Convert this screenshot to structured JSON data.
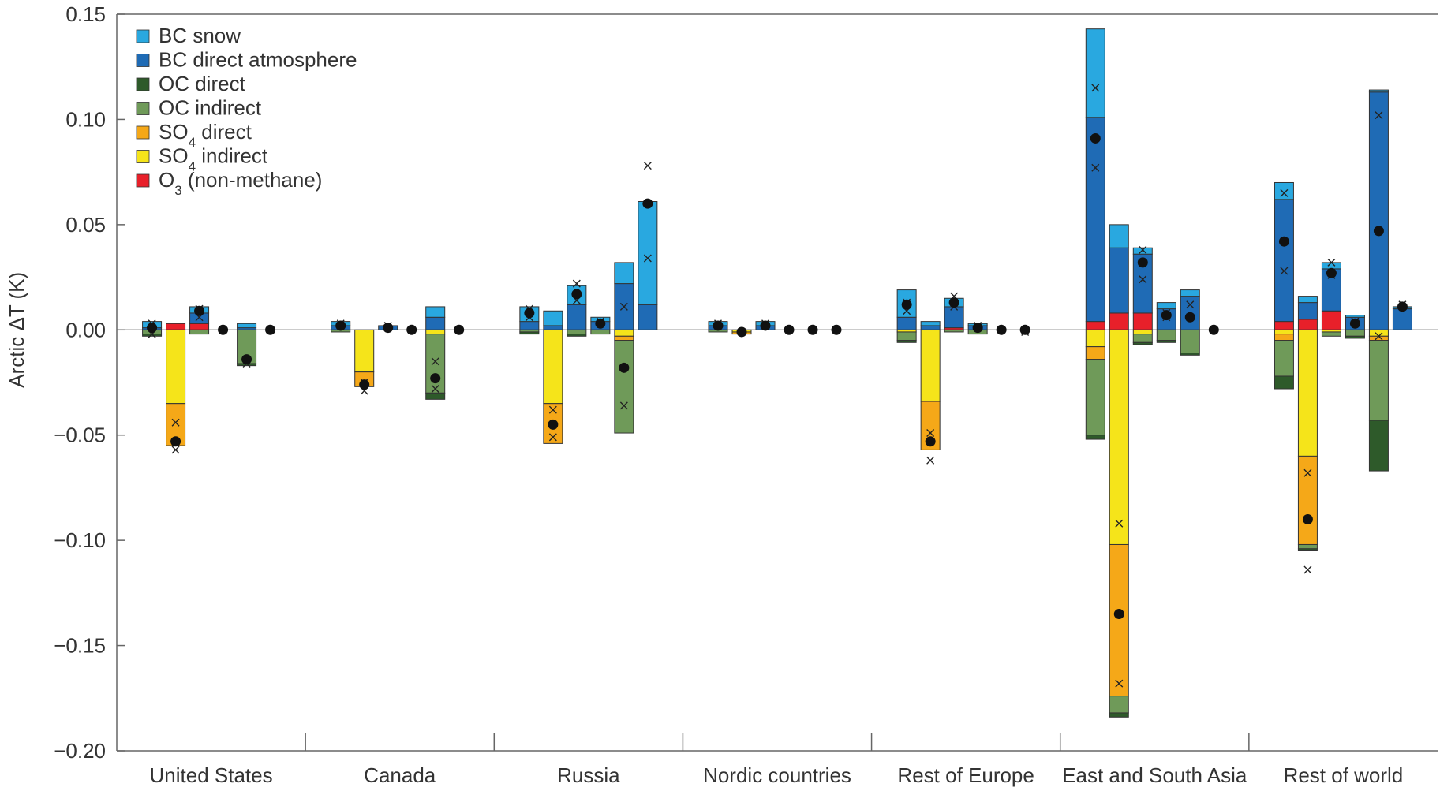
{
  "chart_data": {
    "type": "bar",
    "stacked": true,
    "ylabel": "Arctic ΔT (K)",
    "ylim": [
      -0.2,
      0.15
    ],
    "yticks": [
      0.15,
      0.1,
      0.05,
      0.0,
      -0.05,
      -0.1,
      -0.15,
      -0.2
    ],
    "ytick_labels": [
      "0.15",
      "0.10",
      "0.05",
      "0.00",
      "−0.05",
      "−0.10",
      "−0.15",
      "−0.20"
    ],
    "grid": false,
    "legend_position": "top-left",
    "categories": [
      "United States",
      "Canada",
      "Russia",
      "Nordic countries",
      "Rest of Europe",
      "East and South Asia",
      "Rest of world"
    ],
    "components": [
      {
        "key": "bc_snow",
        "label": "BC snow",
        "sub": "",
        "after": "",
        "color": "#29a8e0"
      },
      {
        "key": "bc_atm",
        "label": "BC direct atmosphere",
        "sub": "",
        "after": "",
        "color": "#1f6bb5"
      },
      {
        "key": "oc_dir",
        "label": "OC direct",
        "sub": "",
        "after": "",
        "color": "#2e5a2a"
      },
      {
        "key": "oc_ind",
        "label": "OC indirect",
        "sub": "",
        "after": "",
        "color": "#6f9a59"
      },
      {
        "key": "so4_dir",
        "label": "SO",
        "sub": "4",
        "after": " direct",
        "color": "#f5a818"
      },
      {
        "key": "so4_ind",
        "label": "SO",
        "sub": "4",
        "after": " indirect",
        "color": "#f5e41a"
      },
      {
        "key": "o3",
        "label": "O",
        "sub": "3",
        "after": " (non-methane)",
        "color": "#e8202a"
      }
    ],
    "bars": [
      {
        "group": 0,
        "pos": [
          {
            "c": "bc_atm",
            "v": 0.001
          },
          {
            "c": "bc_snow",
            "v": 0.003
          }
        ],
        "neg": [
          {
            "c": "oc_ind",
            "v": -0.002
          },
          {
            "c": "oc_dir",
            "v": -0.001
          }
        ],
        "dot": 0.001,
        "crosses": [
          0.003,
          -0.002
        ]
      },
      {
        "group": 0,
        "pos": [
          {
            "c": "o3",
            "v": 0.003
          }
        ],
        "neg": [
          {
            "c": "so4_ind",
            "v": -0.035
          },
          {
            "c": "so4_dir",
            "v": -0.02
          }
        ],
        "dot": -0.053,
        "crosses": [
          -0.044,
          -0.057
        ]
      },
      {
        "group": 0,
        "pos": [
          {
            "c": "o3",
            "v": 0.003
          },
          {
            "c": "bc_atm",
            "v": 0.005
          },
          {
            "c": "bc_snow",
            "v": 0.003
          }
        ],
        "neg": [
          {
            "c": "oc_ind",
            "v": -0.002
          }
        ],
        "dot": 0.009,
        "crosses": [
          0.01,
          0.006
        ]
      },
      {
        "group": 0,
        "pos": [],
        "neg": [],
        "dot": 0.0,
        "crosses": []
      },
      {
        "group": 0,
        "pos": [
          {
            "c": "bc_atm",
            "v": 0.001
          },
          {
            "c": "bc_snow",
            "v": 0.002
          }
        ],
        "neg": [
          {
            "c": "oc_ind",
            "v": -0.016
          },
          {
            "c": "oc_dir",
            "v": -0.001
          }
        ],
        "dot": -0.014,
        "crosses": [
          -0.016
        ]
      },
      {
        "group": 0,
        "pos": [],
        "neg": [],
        "dot": 0.0,
        "crosses": []
      },
      {
        "group": 1,
        "pos": [
          {
            "c": "bc_atm",
            "v": 0.002
          },
          {
            "c": "bc_snow",
            "v": 0.002
          }
        ],
        "neg": [
          {
            "c": "oc_ind",
            "v": -0.001
          }
        ],
        "dot": 0.002,
        "crosses": [
          0.003
        ]
      },
      {
        "group": 1,
        "pos": [],
        "neg": [
          {
            "c": "so4_ind",
            "v": -0.02
          },
          {
            "c": "so4_dir",
            "v": -0.007
          }
        ],
        "dot": -0.026,
        "crosses": [
          -0.025,
          -0.029
        ]
      },
      {
        "group": 1,
        "pos": [
          {
            "c": "bc_atm",
            "v": 0.002
          }
        ],
        "neg": [],
        "dot": 0.001,
        "crosses": [
          0.002
        ]
      },
      {
        "group": 1,
        "pos": [],
        "neg": [],
        "dot": 0.0,
        "crosses": []
      },
      {
        "group": 1,
        "pos": [
          {
            "c": "bc_atm",
            "v": 0.006
          },
          {
            "c": "bc_snow",
            "v": 0.005
          }
        ],
        "neg": [
          {
            "c": "so4_ind",
            "v": -0.002
          },
          {
            "c": "oc_ind",
            "v": -0.028
          },
          {
            "c": "oc_dir",
            "v": -0.003
          }
        ],
        "dot": -0.023,
        "crosses": [
          -0.015,
          -0.028
        ]
      },
      {
        "group": 1,
        "pos": [],
        "neg": [],
        "dot": 0.0,
        "crosses": []
      },
      {
        "group": 2,
        "pos": [
          {
            "c": "bc_atm",
            "v": 0.004
          },
          {
            "c": "bc_snow",
            "v": 0.007
          }
        ],
        "neg": [
          {
            "c": "oc_ind",
            "v": -0.001
          },
          {
            "c": "oc_dir",
            "v": -0.001
          }
        ],
        "dot": 0.008,
        "crosses": [
          0.01,
          0.006
        ]
      },
      {
        "group": 2,
        "pos": [
          {
            "c": "bc_atm",
            "v": 0.002
          },
          {
            "c": "bc_snow",
            "v": 0.007
          }
        ],
        "neg": [
          {
            "c": "so4_ind",
            "v": -0.035
          },
          {
            "c": "so4_dir",
            "v": -0.019
          }
        ],
        "dot": -0.045,
        "crosses": [
          -0.038,
          -0.051
        ]
      },
      {
        "group": 2,
        "pos": [
          {
            "c": "bc_atm",
            "v": 0.012
          },
          {
            "c": "bc_snow",
            "v": 0.009
          }
        ],
        "neg": [
          {
            "c": "oc_ind",
            "v": -0.002
          },
          {
            "c": "oc_dir",
            "v": -0.001
          }
        ],
        "dot": 0.017,
        "crosses": [
          0.022,
          0.014
        ]
      },
      {
        "group": 2,
        "pos": [
          {
            "c": "bc_atm",
            "v": 0.004
          },
          {
            "c": "bc_snow",
            "v": 0.002
          }
        ],
        "neg": [
          {
            "c": "oc_ind",
            "v": -0.002
          }
        ],
        "dot": 0.003,
        "crosses": [
          0.004
        ]
      },
      {
        "group": 2,
        "pos": [
          {
            "c": "bc_atm",
            "v": 0.022
          },
          {
            "c": "bc_snow",
            "v": 0.01
          }
        ],
        "neg": [
          {
            "c": "so4_ind",
            "v": -0.003
          },
          {
            "c": "so4_dir",
            "v": -0.002
          },
          {
            "c": "oc_ind",
            "v": -0.044
          }
        ],
        "dot": -0.018,
        "crosses": [
          0.011,
          -0.036
        ]
      },
      {
        "group": 2,
        "pos": [
          {
            "c": "bc_atm",
            "v": 0.012
          },
          {
            "c": "bc_snow",
            "v": 0.049
          }
        ],
        "neg": [],
        "dot": 0.06,
        "crosses": [
          0.078,
          0.034
        ]
      },
      {
        "group": 3,
        "pos": [
          {
            "c": "bc_atm",
            "v": 0.002
          },
          {
            "c": "bc_snow",
            "v": 0.002
          }
        ],
        "neg": [
          {
            "c": "oc_ind",
            "v": -0.001
          }
        ],
        "dot": 0.002,
        "crosses": [
          0.003
        ]
      },
      {
        "group": 3,
        "pos": [],
        "neg": [
          {
            "c": "so4_ind",
            "v": -0.001
          },
          {
            "c": "so4_dir",
            "v": -0.001
          }
        ],
        "dot": -0.001,
        "crosses": [
          -0.001
        ]
      },
      {
        "group": 3,
        "pos": [
          {
            "c": "bc_atm",
            "v": 0.002
          },
          {
            "c": "bc_snow",
            "v": 0.002
          }
        ],
        "neg": [],
        "dot": 0.002,
        "crosses": [
          0.003
        ]
      },
      {
        "group": 3,
        "pos": [],
        "neg": [],
        "dot": 0.0,
        "crosses": []
      },
      {
        "group": 3,
        "pos": [],
        "neg": [],
        "dot": 0.0,
        "crosses": []
      },
      {
        "group": 3,
        "pos": [],
        "neg": [],
        "dot": 0.0,
        "crosses": []
      },
      {
        "group": 4,
        "pos": [
          {
            "c": "bc_atm",
            "v": 0.006
          },
          {
            "c": "bc_snow",
            "v": 0.013
          }
        ],
        "neg": [
          {
            "c": "so4_ind",
            "v": -0.001
          },
          {
            "c": "oc_ind",
            "v": -0.004
          },
          {
            "c": "oc_dir",
            "v": -0.001
          }
        ],
        "dot": 0.012,
        "crosses": [
          0.013,
          0.009
        ]
      },
      {
        "group": 4,
        "pos": [
          {
            "c": "bc_atm",
            "v": 0.002
          },
          {
            "c": "bc_snow",
            "v": 0.002
          }
        ],
        "neg": [
          {
            "c": "so4_ind",
            "v": -0.034
          },
          {
            "c": "so4_dir",
            "v": -0.023
          }
        ],
        "dot": -0.053,
        "crosses": [
          -0.049,
          -0.062
        ]
      },
      {
        "group": 4,
        "pos": [
          {
            "c": "o3",
            "v": 0.001
          },
          {
            "c": "bc_atm",
            "v": 0.01
          },
          {
            "c": "bc_snow",
            "v": 0.004
          }
        ],
        "neg": [
          {
            "c": "oc_ind",
            "v": -0.001
          }
        ],
        "dot": 0.013,
        "crosses": [
          0.016,
          0.011
        ]
      },
      {
        "group": 4,
        "pos": [
          {
            "c": "bc_atm",
            "v": 0.002
          },
          {
            "c": "bc_snow",
            "v": 0.001
          }
        ],
        "neg": [
          {
            "c": "oc_ind",
            "v": -0.002
          }
        ],
        "dot": 0.001,
        "crosses": [
          0.002
        ]
      },
      {
        "group": 4,
        "pos": [],
        "neg": [],
        "dot": 0.0,
        "crosses": []
      },
      {
        "group": 4,
        "pos": [],
        "neg": [],
        "dot": 0.0,
        "crosses": [
          -0.001
        ]
      },
      {
        "group": 5,
        "pos": [
          {
            "c": "o3",
            "v": 0.004
          },
          {
            "c": "bc_atm",
            "v": 0.097
          },
          {
            "c": "bc_snow",
            "v": 0.042
          }
        ],
        "neg": [
          {
            "c": "so4_ind",
            "v": -0.008
          },
          {
            "c": "so4_dir",
            "v": -0.006
          },
          {
            "c": "oc_ind",
            "v": -0.036
          },
          {
            "c": "oc_dir",
            "v": -0.002
          }
        ],
        "dot": 0.091,
        "crosses": [
          0.115,
          0.077
        ]
      },
      {
        "group": 5,
        "pos": [
          {
            "c": "o3",
            "v": 0.008
          },
          {
            "c": "bc_atm",
            "v": 0.031
          },
          {
            "c": "bc_snow",
            "v": 0.011
          }
        ],
        "neg": [
          {
            "c": "so4_ind",
            "v": -0.102
          },
          {
            "c": "so4_dir",
            "v": -0.072
          },
          {
            "c": "oc_ind",
            "v": -0.008
          },
          {
            "c": "oc_dir",
            "v": -0.002
          }
        ],
        "dot": -0.135,
        "crosses": [
          -0.092,
          -0.168
        ]
      },
      {
        "group": 5,
        "pos": [
          {
            "c": "o3",
            "v": 0.008
          },
          {
            "c": "bc_atm",
            "v": 0.028
          },
          {
            "c": "bc_snow",
            "v": 0.003
          }
        ],
        "neg": [
          {
            "c": "so4_ind",
            "v": -0.002
          },
          {
            "c": "oc_ind",
            "v": -0.004
          },
          {
            "c": "oc_dir",
            "v": -0.001
          }
        ],
        "dot": 0.032,
        "crosses": [
          0.038,
          0.024
        ]
      },
      {
        "group": 5,
        "pos": [
          {
            "c": "bc_atm",
            "v": 0.01
          },
          {
            "c": "bc_snow",
            "v": 0.003
          }
        ],
        "neg": [
          {
            "c": "oc_ind",
            "v": -0.005
          },
          {
            "c": "oc_dir",
            "v": -0.001
          }
        ],
        "dot": 0.007,
        "crosses": [
          0.008,
          0.006
        ]
      },
      {
        "group": 5,
        "pos": [
          {
            "c": "bc_atm",
            "v": 0.016
          },
          {
            "c": "bc_snow",
            "v": 0.003
          }
        ],
        "neg": [
          {
            "c": "oc_ind",
            "v": -0.011
          },
          {
            "c": "oc_dir",
            "v": -0.001
          }
        ],
        "dot": 0.006,
        "crosses": [
          0.012
        ]
      },
      {
        "group": 5,
        "pos": [],
        "neg": [],
        "dot": 0.0,
        "crosses": []
      },
      {
        "group": 6,
        "pos": [
          {
            "c": "o3",
            "v": 0.004
          },
          {
            "c": "bc_atm",
            "v": 0.058
          },
          {
            "c": "bc_snow",
            "v": 0.008
          }
        ],
        "neg": [
          {
            "c": "so4_ind",
            "v": -0.002
          },
          {
            "c": "so4_dir",
            "v": -0.003
          },
          {
            "c": "oc_ind",
            "v": -0.017
          },
          {
            "c": "oc_dir",
            "v": -0.006
          }
        ],
        "dot": 0.042,
        "crosses": [
          0.065,
          0.028
        ]
      },
      {
        "group": 6,
        "pos": [
          {
            "c": "o3",
            "v": 0.005
          },
          {
            "c": "bc_atm",
            "v": 0.008
          },
          {
            "c": "bc_snow",
            "v": 0.003
          }
        ],
        "neg": [
          {
            "c": "so4_ind",
            "v": -0.06
          },
          {
            "c": "so4_dir",
            "v": -0.042
          },
          {
            "c": "oc_ind",
            "v": -0.002
          },
          {
            "c": "oc_dir",
            "v": -0.001
          }
        ],
        "dot": -0.09,
        "crosses": [
          -0.068,
          -0.114
        ]
      },
      {
        "group": 6,
        "pos": [
          {
            "c": "o3",
            "v": 0.009
          },
          {
            "c": "bc_atm",
            "v": 0.02
          },
          {
            "c": "bc_snow",
            "v": 0.003
          }
        ],
        "neg": [
          {
            "c": "so4_ind",
            "v": -0.001
          },
          {
            "c": "oc_ind",
            "v": -0.002
          }
        ],
        "dot": 0.027,
        "crosses": [
          0.032,
          0.026
        ]
      },
      {
        "group": 6,
        "pos": [
          {
            "c": "bc_atm",
            "v": 0.006
          },
          {
            "c": "bc_snow",
            "v": 0.001
          }
        ],
        "neg": [
          {
            "c": "oc_ind",
            "v": -0.003
          },
          {
            "c": "oc_dir",
            "v": -0.001
          }
        ],
        "dot": 0.003,
        "crosses": [
          0.004
        ]
      },
      {
        "group": 6,
        "pos": [
          {
            "c": "bc_atm",
            "v": 0.113
          },
          {
            "c": "bc_snow",
            "v": 0.001
          }
        ],
        "neg": [
          {
            "c": "so4_ind",
            "v": -0.003
          },
          {
            "c": "so4_dir",
            "v": -0.002
          },
          {
            "c": "oc_ind",
            "v": -0.038
          },
          {
            "c": "oc_dir",
            "v": -0.024
          }
        ],
        "dot": 0.047,
        "crosses": [
          0.102,
          -0.003
        ]
      },
      {
        "group": 6,
        "pos": [
          {
            "c": "bc_atm",
            "v": 0.01
          },
          {
            "c": "bc_snow",
            "v": 0.001
          }
        ],
        "neg": [],
        "dot": 0.011,
        "crosses": [
          0.012
        ]
      }
    ]
  }
}
